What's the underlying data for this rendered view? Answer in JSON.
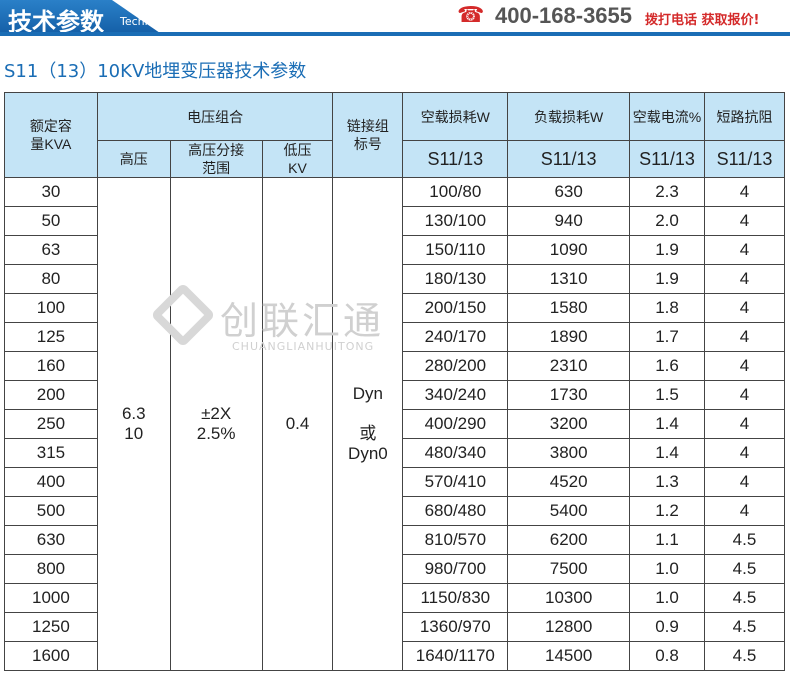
{
  "header": {
    "title": "技术参数",
    "subtitle": "Technical parameter",
    "phone": "400-168-3655",
    "cta": "拨打电话  获取报价!",
    "accent": "#1a6db5",
    "cta_color": "#d42a2a"
  },
  "page_title": "S11（13）10KV地埋变压器技术参数",
  "watermark": {
    "cn": "创联汇通",
    "en": "CHUANGLIANHUITONG"
  },
  "table": {
    "h_capacity": "额定容量KVA",
    "h_voltage": "电压组合",
    "h_hv": "高压",
    "h_tap": "高压分接范围",
    "h_lv": "低压KV",
    "h_group": "链接组标号",
    "h_noload": "空载损耗W",
    "h_load": "负载损耗W",
    "h_current": "空载电流%",
    "h_impedance": "短路抗阻",
    "h_model": "S11/13",
    "hv": "6.3\n10",
    "tap": "±2X\n2.5%",
    "lv": "0.4",
    "group": "Dyn\n\n或\nDyn0",
    "rows": [
      [
        "30",
        "100/80",
        "630",
        "2.3",
        "4"
      ],
      [
        "50",
        "130/100",
        "940",
        "2.0",
        "4"
      ],
      [
        "63",
        "150/110",
        "1090",
        "1.9",
        "4"
      ],
      [
        "80",
        "180/130",
        "1310",
        "1.9",
        "4"
      ],
      [
        "100",
        "200/150",
        "1580",
        "1.8",
        "4"
      ],
      [
        "125",
        "240/170",
        "1890",
        "1.7",
        "4"
      ],
      [
        "160",
        "280/200",
        "2310",
        "1.6",
        "4"
      ],
      [
        "200",
        "340/240",
        "1730",
        "1.5",
        "4"
      ],
      [
        "250",
        "400/290",
        "3200",
        "1.4",
        "4"
      ],
      [
        "315",
        "480/340",
        "3800",
        "1.4",
        "4"
      ],
      [
        "400",
        "570/410",
        "4520",
        "1.3",
        "4"
      ],
      [
        "500",
        "680/480",
        "5400",
        "1.2",
        "4"
      ],
      [
        "630",
        "810/570",
        "6200",
        "1.1",
        "4.5"
      ],
      [
        "800",
        "980/700",
        "7500",
        "1.0",
        "4.5"
      ],
      [
        "1000",
        "1150/830",
        "10300",
        "1.0",
        "4.5"
      ],
      [
        "1250",
        "1360/970",
        "12800",
        "0.9",
        "4.5"
      ],
      [
        "1600",
        "1640/1170",
        "14500",
        "0.8",
        "4.5"
      ]
    ]
  }
}
